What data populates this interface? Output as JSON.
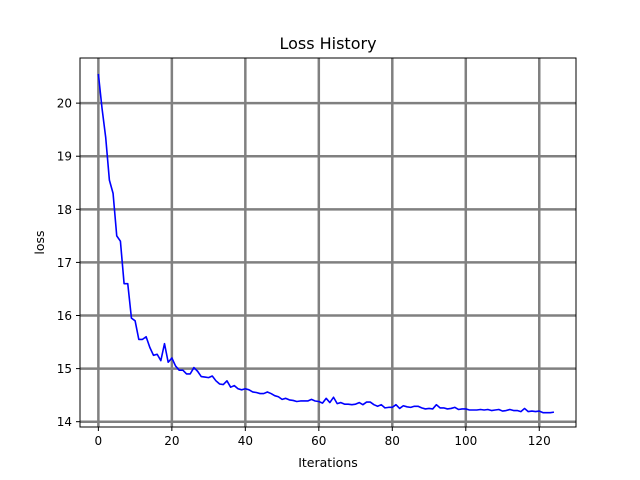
{
  "chart_data": {
    "type": "line",
    "title": "Loss History",
    "xlabel": "Iterations",
    "ylabel": "loss",
    "xlim": [
      -5,
      130
    ],
    "ylim": [
      13.9,
      20.85
    ],
    "xticks": [
      0,
      20,
      40,
      60,
      80,
      100,
      120
    ],
    "yticks": [
      14,
      15,
      16,
      17,
      18,
      19,
      20
    ],
    "grid": true,
    "grid_color": "#808080",
    "line_color": "#0000ff",
    "series": [
      {
        "x": [
          0,
          1,
          2,
          3,
          4,
          5,
          6,
          7,
          8,
          9,
          10,
          11,
          12,
          13,
          14,
          15,
          16,
          17,
          18,
          19,
          20,
          21,
          22,
          23,
          24,
          25,
          26,
          27,
          28,
          29,
          30,
          31,
          32,
          33,
          34,
          35,
          36,
          37,
          38,
          39,
          40,
          41,
          42,
          43,
          44,
          45,
          46,
          47,
          48,
          49,
          50,
          51,
          52,
          53,
          54,
          55,
          56,
          57,
          58,
          59,
          60,
          61,
          62,
          63,
          64,
          65,
          66,
          67,
          68,
          69,
          70,
          71,
          72,
          73,
          74,
          75,
          76,
          77,
          78,
          79,
          80,
          81,
          82,
          83,
          84,
          85,
          86,
          87,
          88,
          89,
          90,
          91,
          92,
          93,
          94,
          95,
          96,
          97,
          98,
          99,
          100,
          101,
          102,
          103,
          104,
          105,
          106,
          107,
          108,
          109,
          110,
          111,
          112,
          113,
          114,
          115,
          116,
          117,
          118,
          119,
          120,
          121,
          122,
          123,
          124
        ],
        "values": [
          20.55,
          19.9,
          19.35,
          18.55,
          18.3,
          17.5,
          17.4,
          16.6,
          16.6,
          15.95,
          15.9,
          15.55,
          15.55,
          15.6,
          15.4,
          15.25,
          15.27,
          15.15,
          15.47,
          15.12,
          15.2,
          15.05,
          14.97,
          14.97,
          14.9,
          14.9,
          15.02,
          14.95,
          14.85,
          14.84,
          14.83,
          14.86,
          14.77,
          14.71,
          14.7,
          14.77,
          14.65,
          14.68,
          14.62,
          14.6,
          14.62,
          14.6,
          14.56,
          14.55,
          14.53,
          14.53,
          14.56,
          14.53,
          14.49,
          14.47,
          14.42,
          14.44,
          14.41,
          14.4,
          14.38,
          14.39,
          14.39,
          14.39,
          14.42,
          14.39,
          14.38,
          14.35,
          14.44,
          14.36,
          14.46,
          14.34,
          14.36,
          14.33,
          14.33,
          14.32,
          14.33,
          14.36,
          14.32,
          14.37,
          14.37,
          14.32,
          14.29,
          14.32,
          14.26,
          14.27,
          14.27,
          14.32,
          14.25,
          14.3,
          14.28,
          14.27,
          14.29,
          14.29,
          14.26,
          14.24,
          14.25,
          14.24,
          14.32,
          14.26,
          14.26,
          14.24,
          14.25,
          14.27,
          14.23,
          14.24,
          14.24,
          14.22,
          14.22,
          14.22,
          14.23,
          14.22,
          14.23,
          14.21,
          14.22,
          14.23,
          14.2,
          14.21,
          14.23,
          14.21,
          14.21,
          14.19,
          14.25,
          14.19,
          14.2,
          14.19,
          14.2,
          14.17,
          14.17,
          14.17,
          14.18
        ]
      }
    ]
  }
}
